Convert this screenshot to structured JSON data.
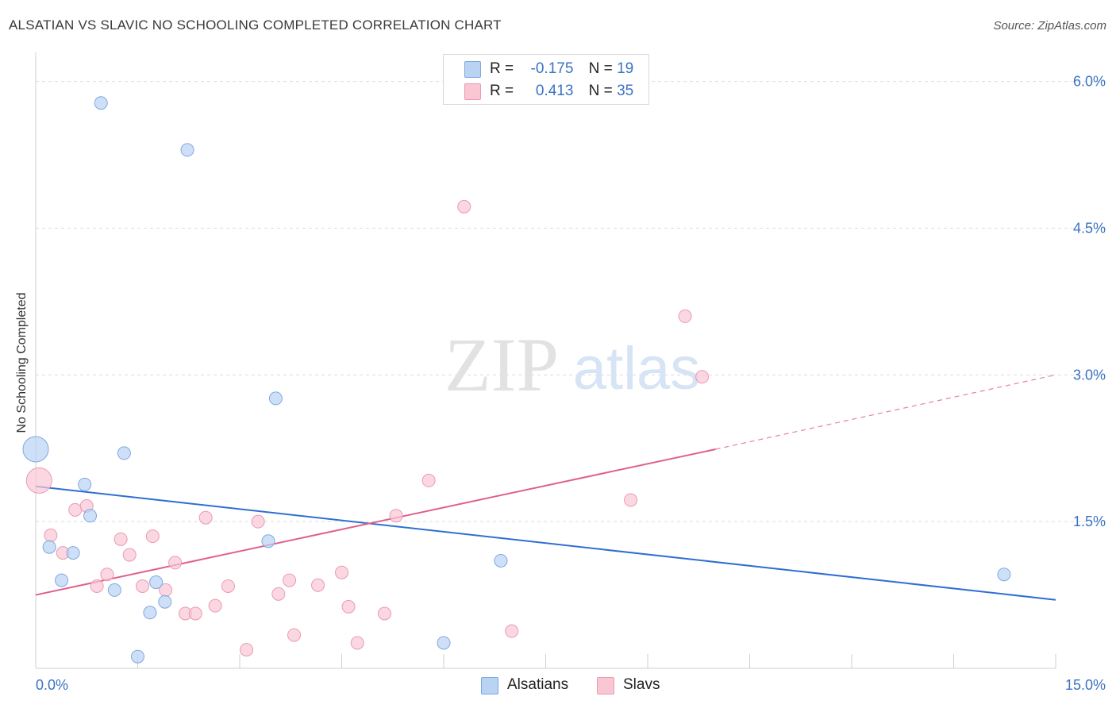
{
  "header": {
    "title": "ALSATIAN VS SLAVIC NO SCHOOLING COMPLETED CORRELATION CHART",
    "source": "Source: ZipAtlas.com"
  },
  "watermark": {
    "zip": "ZIP",
    "atlas": "atlas"
  },
  "legend": {
    "rows": [
      {
        "r_label": "R =",
        "r_value": "-0.175",
        "n_label": "N =",
        "n_value": "19"
      },
      {
        "r_label": "R =",
        "r_value": "0.413",
        "n_label": "N =",
        "n_value": "35"
      }
    ]
  },
  "bottom_legend": [
    "Alsatians",
    "Slavs"
  ],
  "colors": {
    "blue_fill": "#b9d3f3",
    "blue_stroke": "#7ea8e0",
    "blue_line": "#2f6fd1",
    "pink_fill": "#f9c6d4",
    "pink_stroke": "#eb9ab2",
    "pink_line": "#e0608a",
    "tick_label": "#3a73c4",
    "grid": "#dcdcdc"
  },
  "chart_data": {
    "type": "scatter",
    "title": "ALSATIAN VS SLAVIC NO SCHOOLING COMPLETED CORRELATION CHART",
    "xlabel": "",
    "ylabel": "No Schooling Completed",
    "xlim": [
      0,
      15
    ],
    "ylim": [
      0,
      6.2
    ],
    "x_tick_labels": [
      "0.0%",
      "15.0%"
    ],
    "y_ticks": [
      {
        "value": 1.5,
        "label": "1.5%"
      },
      {
        "value": 3.0,
        "label": "3.0%"
      },
      {
        "value": 4.5,
        "label": "4.5%"
      },
      {
        "value": 6.0,
        "label": "6.0%"
      }
    ],
    "series": [
      {
        "name": "Alsatians",
        "r": -0.175,
        "n": 19,
        "points": [
          {
            "x": 0.0,
            "y": 2.24,
            "size": "large"
          },
          {
            "x": 0.2,
            "y": 1.24
          },
          {
            "x": 0.38,
            "y": 0.9
          },
          {
            "x": 0.55,
            "y": 1.18
          },
          {
            "x": 0.72,
            "y": 1.88
          },
          {
            "x": 0.8,
            "y": 1.56
          },
          {
            "x": 0.96,
            "y": 5.78
          },
          {
            "x": 1.16,
            "y": 0.8
          },
          {
            "x": 1.3,
            "y": 2.2
          },
          {
            "x": 1.5,
            "y": 0.12
          },
          {
            "x": 1.68,
            "y": 0.57
          },
          {
            "x": 1.77,
            "y": 0.88
          },
          {
            "x": 1.9,
            "y": 0.68
          },
          {
            "x": 2.23,
            "y": 5.3
          },
          {
            "x": 3.42,
            "y": 1.3
          },
          {
            "x": 3.53,
            "y": 2.76
          },
          {
            "x": 6.0,
            "y": 0.26
          },
          {
            "x": 6.84,
            "y": 1.1
          },
          {
            "x": 14.24,
            "y": 0.96
          }
        ],
        "trend": {
          "x1": 0.0,
          "y1": 1.86,
          "x2": 15.0,
          "y2": 0.7
        }
      },
      {
        "name": "Slavs",
        "r": 0.413,
        "n": 35,
        "points": [
          {
            "x": 0.05,
            "y": 1.92,
            "size": "large"
          },
          {
            "x": 0.22,
            "y": 1.36
          },
          {
            "x": 0.4,
            "y": 1.18
          },
          {
            "x": 0.58,
            "y": 1.62
          },
          {
            "x": 0.75,
            "y": 1.66
          },
          {
            "x": 0.9,
            "y": 0.84
          },
          {
            "x": 1.05,
            "y": 0.96
          },
          {
            "x": 1.25,
            "y": 1.32
          },
          {
            "x": 1.38,
            "y": 1.16
          },
          {
            "x": 1.57,
            "y": 0.84
          },
          {
            "x": 1.72,
            "y": 1.35
          },
          {
            "x": 1.91,
            "y": 0.8
          },
          {
            "x": 2.05,
            "y": 1.08
          },
          {
            "x": 2.2,
            "y": 0.56
          },
          {
            "x": 2.35,
            "y": 0.56
          },
          {
            "x": 2.5,
            "y": 1.54
          },
          {
            "x": 2.64,
            "y": 0.64
          },
          {
            "x": 2.83,
            "y": 0.84
          },
          {
            "x": 3.1,
            "y": 0.19
          },
          {
            "x": 3.27,
            "y": 1.5
          },
          {
            "x": 3.57,
            "y": 0.76
          },
          {
            "x": 3.73,
            "y": 0.9
          },
          {
            "x": 3.8,
            "y": 0.34
          },
          {
            "x": 4.15,
            "y": 0.85
          },
          {
            "x": 4.5,
            "y": 0.98
          },
          {
            "x": 4.6,
            "y": 0.63
          },
          {
            "x": 4.73,
            "y": 0.26
          },
          {
            "x": 5.13,
            "y": 0.56
          },
          {
            "x": 5.3,
            "y": 1.56
          },
          {
            "x": 5.78,
            "y": 1.92
          },
          {
            "x": 6.3,
            "y": 4.72
          },
          {
            "x": 7.0,
            "y": 0.38
          },
          {
            "x": 8.75,
            "y": 1.72
          },
          {
            "x": 9.55,
            "y": 3.6
          },
          {
            "x": 9.8,
            "y": 2.98
          }
        ],
        "trend": {
          "x1": 0.0,
          "y1": 0.75,
          "x2": 10.0,
          "y2": 2.24,
          "dash_to_x": 15.0,
          "dash_to_y": 3.0
        }
      }
    ]
  }
}
